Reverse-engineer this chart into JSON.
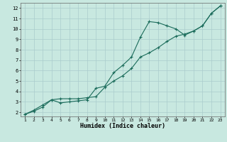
{
  "xlabel": "Humidex (Indice chaleur)",
  "bg_color": "#c8e8e0",
  "grid_color": "#aacccc",
  "line_color": "#1a6b5a",
  "x_ticks": [
    1,
    2,
    3,
    4,
    5,
    6,
    7,
    8,
    9,
    10,
    11,
    12,
    13,
    14,
    15,
    16,
    17,
    18,
    19,
    20,
    21,
    22,
    23
  ],
  "y_ticks": [
    2,
    3,
    4,
    5,
    6,
    7,
    8,
    9,
    10,
    11,
    12
  ],
  "xlim": [
    0.5,
    23.5
  ],
  "ylim": [
    1.6,
    12.5
  ],
  "series1_x": [
    1,
    2,
    3,
    4,
    5,
    6,
    7,
    8,
    9,
    10,
    11,
    12,
    13,
    14,
    15,
    16,
    17,
    18,
    19,
    20,
    21,
    22,
    23
  ],
  "series1_y": [
    1.8,
    2.2,
    2.7,
    3.2,
    2.9,
    3.0,
    3.1,
    3.2,
    4.3,
    4.5,
    5.8,
    6.5,
    7.3,
    9.2,
    10.7,
    10.6,
    10.3,
    10.0,
    9.4,
    9.8,
    10.3,
    11.5,
    12.2
  ],
  "series2_x": [
    1,
    2,
    3,
    4,
    5,
    6,
    7,
    8,
    9,
    10,
    11,
    12,
    13,
    14,
    15,
    16,
    17,
    18,
    19,
    20,
    21,
    22,
    23
  ],
  "series2_y": [
    1.8,
    2.1,
    2.5,
    3.2,
    3.3,
    3.3,
    3.3,
    3.4,
    3.5,
    4.4,
    5.0,
    5.5,
    6.2,
    7.3,
    7.7,
    8.2,
    8.8,
    9.3,
    9.5,
    9.8,
    10.3,
    11.5,
    12.2
  ]
}
